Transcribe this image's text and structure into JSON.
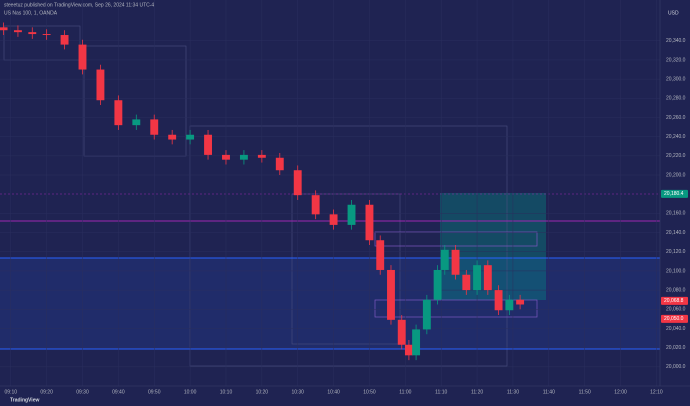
{
  "header": "steeetuz published on TradingView.com, Sep 26, 2024 11:34 UTC-4",
  "symbol": "US Nas 100, 1, OANDA",
  "currency": "USD",
  "brand": "TradingView",
  "chart_data": {
    "type": "candlestick",
    "up_color": "#089981",
    "down_color": "#f23645",
    "xlim": [
      7,
      191
    ],
    "ylim": [
      19980,
      20370
    ],
    "grid": true,
    "xticks": [
      {
        "value": 10,
        "label": "09:10"
      },
      {
        "value": 20,
        "label": "09:20"
      },
      {
        "value": 30,
        "label": "09:30"
      },
      {
        "value": 40,
        "label": "09:40"
      },
      {
        "value": 50,
        "label": "09:50"
      },
      {
        "value": 60,
        "label": "10:00"
      },
      {
        "value": 70,
        "label": "10:10"
      },
      {
        "value": 80,
        "label": "10:20"
      },
      {
        "value": 90,
        "label": "10:30"
      },
      {
        "value": 100,
        "label": "10:40"
      },
      {
        "value": 110,
        "label": "10:50"
      },
      {
        "value": 120,
        "label": "11:00"
      },
      {
        "value": 130,
        "label": "11:10"
      },
      {
        "value": 140,
        "label": "11:20"
      },
      {
        "value": 150,
        "label": "11:30"
      },
      {
        "value": 160,
        "label": "11:40"
      },
      {
        "value": 170,
        "label": "11:50"
      },
      {
        "value": 180,
        "label": "12:00"
      },
      {
        "value": 190,
        "label": "12:10"
      }
    ],
    "yticks": [
      {
        "value": 20000,
        "label": "20,000.0"
      },
      {
        "value": 20020,
        "label": "20,020.0"
      },
      {
        "value": 20040,
        "label": "20,040.0"
      },
      {
        "value": 20060,
        "label": "20,060.0"
      },
      {
        "value": 20080,
        "label": "20,080.0"
      },
      {
        "value": 20100,
        "label": "20,100.0"
      },
      {
        "value": 20120,
        "label": "20,120.0"
      },
      {
        "value": 20140,
        "label": "20,140.0"
      },
      {
        "value": 20160,
        "label": "20,160.0"
      },
      {
        "value": 20200,
        "label": "20,200.0"
      },
      {
        "value": 20220,
        "label": "20,220.0"
      },
      {
        "value": 20240,
        "label": "20,240.0"
      },
      {
        "value": 20260,
        "label": "20,260.0"
      },
      {
        "value": 20280,
        "label": "20,280.0"
      },
      {
        "value": 20300,
        "label": "20,300.0"
      },
      {
        "value": 20320,
        "label": "20,320.0"
      },
      {
        "value": 20340,
        "label": "20,340.0"
      }
    ],
    "price_labels": [
      {
        "value": 20180.4,
        "label": "20,180.4",
        "color": "#089981"
      },
      {
        "value": 20068.8,
        "label": "20,068.8",
        "color": "#f23645"
      },
      {
        "value": 20050.0,
        "label": "20,050.0",
        "color": "#f23645"
      }
    ],
    "candles": {
      "x": [
        8,
        12,
        16,
        20,
        25,
        30,
        35,
        40,
        45,
        50,
        55,
        60,
        65,
        70,
        75,
        80,
        85,
        90,
        95,
        100,
        105,
        110,
        113,
        116,
        119,
        121,
        123,
        126,
        129,
        131,
        134,
        137,
        140,
        143,
        146,
        149,
        152
      ],
      "open": [
        20354,
        20351,
        20349,
        20347,
        20346,
        20336,
        20310,
        20278,
        20252,
        20258,
        20242,
        20237,
        20242,
        20221,
        20216,
        20221,
        20218,
        20205,
        20179,
        20159,
        20148,
        20169,
        20132,
        20101,
        20049,
        20023,
        20012,
        20039,
        20070,
        20101,
        20122,
        20096,
        20080,
        20106,
        20080,
        20059,
        20070
      ],
      "high": [
        20359,
        20356,
        20354,
        20352,
        20351,
        20341,
        20315,
        20283,
        20263,
        20263,
        20247,
        20247,
        20247,
        20226,
        20226,
        20226,
        20223,
        20210,
        20184,
        20164,
        20174,
        20174,
        20137,
        20106,
        20054,
        20028,
        20044,
        20075,
        20106,
        20127,
        20127,
        20101,
        20111,
        20111,
        20085,
        20075,
        20075
      ],
      "low": [
        20346,
        20344,
        20342,
        20341,
        20331,
        20305,
        20273,
        20247,
        20247,
        20237,
        20232,
        20232,
        20216,
        20211,
        20211,
        20213,
        20200,
        20174,
        20154,
        20143,
        20143,
        20127,
        20096,
        20044,
        20018,
        20007,
        20007,
        20034,
        20065,
        20096,
        20091,
        20075,
        20075,
        20075,
        20054,
        20054,
        20060
      ],
      "close": [
        20351,
        20349,
        20347,
        20346,
        20336,
        20310,
        20278,
        20252,
        20258,
        20242,
        20237,
        20242,
        20221,
        20216,
        20221,
        20218,
        20205,
        20179,
        20159,
        20148,
        20169,
        20132,
        20101,
        20049,
        20023,
        20012,
        20039,
        20070,
        20101,
        20122,
        20096,
        20080,
        20106,
        20080,
        20059,
        20070,
        20065
      ]
    }
  }
}
